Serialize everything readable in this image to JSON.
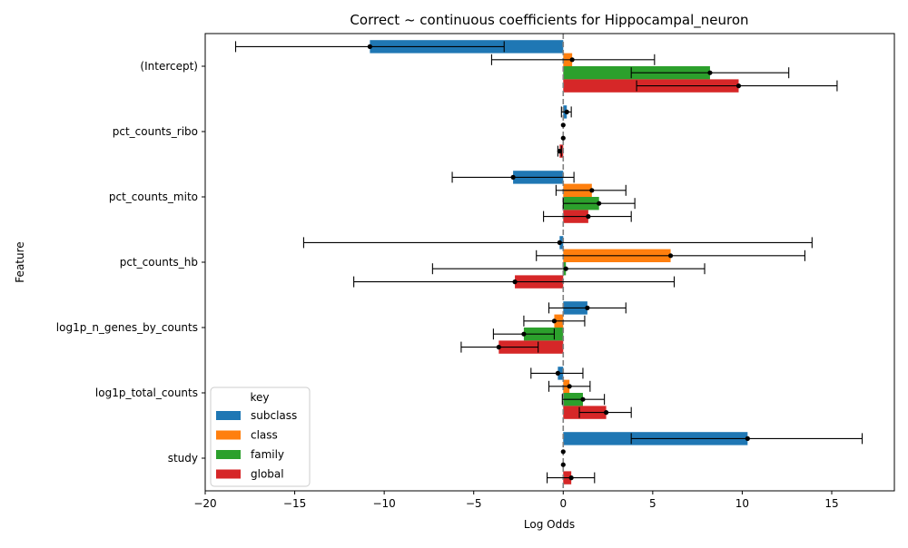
{
  "chart_data": {
    "type": "bar",
    "orientation": "horizontal",
    "title": "Correct ~ continuous coefficients for Hippocampal_neuron",
    "xlabel": "Log Odds",
    "ylabel": "Feature",
    "xlim": [
      -20,
      18.5
    ],
    "xticks": [
      -20,
      -15,
      -10,
      -5,
      0,
      5,
      10,
      15
    ],
    "xtick_labels": [
      "−20",
      "−15",
      "−10",
      "−5",
      "0",
      "5",
      "10",
      "15"
    ],
    "grid": false,
    "reference_line": {
      "x": 0,
      "style": "dashed",
      "color": "#808080"
    },
    "categories": [
      "(Intercept)",
      "pct_counts_ribo",
      "pct_counts_mito",
      "pct_counts_hb",
      "log1p_n_genes_by_counts",
      "log1p_total_counts",
      "study"
    ],
    "series": [
      {
        "name": "subclass",
        "color": "#1f77b4",
        "values": [
          -10.8,
          0.2,
          -2.8,
          -0.2,
          1.35,
          -0.3,
          10.3
        ],
        "ci_low": [
          -18.3,
          -0.1,
          -6.2,
          -14.5,
          -0.8,
          -1.8,
          3.8
        ],
        "ci_high": [
          -3.3,
          0.45,
          0.6,
          13.9,
          3.5,
          1.1,
          16.7
        ]
      },
      {
        "name": "class",
        "color": "#ff7f0e",
        "values": [
          0.5,
          0.0,
          1.6,
          6.0,
          -0.5,
          0.35,
          0.0
        ],
        "ci_low": [
          -4.0,
          0.0,
          -0.4,
          -1.5,
          -2.2,
          -0.8,
          0.0
        ],
        "ci_high": [
          5.1,
          0.0,
          3.5,
          13.5,
          1.2,
          1.5,
          0.0
        ]
      },
      {
        "name": "family",
        "color": "#2ca02c",
        "values": [
          8.2,
          0.0,
          2.0,
          0.15,
          -2.2,
          1.1,
          0.0
        ],
        "ci_low": [
          3.8,
          0.0,
          0.0,
          -7.3,
          -3.9,
          -0.05,
          0.0
        ],
        "ci_high": [
          12.6,
          0.0,
          4.0,
          7.9,
          -0.5,
          2.3,
          0.0
        ]
      },
      {
        "name": "global",
        "color": "#d62728",
        "values": [
          9.8,
          -0.2,
          1.4,
          -2.7,
          -3.6,
          2.4,
          0.45
        ],
        "ci_low": [
          4.1,
          -0.3,
          -1.1,
          -11.7,
          -5.7,
          0.9,
          -0.9
        ],
        "ci_high": [
          15.3,
          -0.1,
          3.8,
          6.2,
          -1.4,
          3.8,
          1.75
        ]
      }
    ],
    "legend": {
      "title": "key",
      "position": "lower-left",
      "entries": [
        "subclass",
        "class",
        "family",
        "global"
      ]
    }
  }
}
